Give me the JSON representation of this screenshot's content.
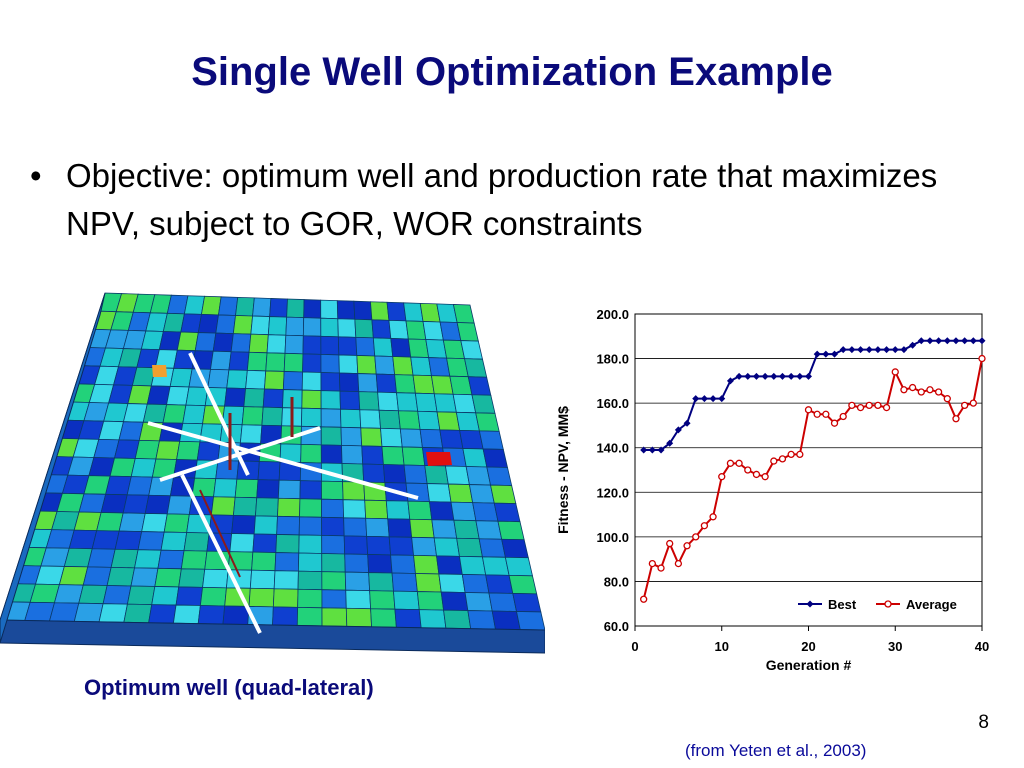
{
  "slide": {
    "title": "Single Well Optimization Example",
    "bullet_symbol": "•",
    "bullet_text": "Objective: optimum well and production rate that maximizes NPV, subject to GOR, WOR constraints",
    "figure_caption": "Optimum well (quad-lateral)",
    "slide_number": "8",
    "citation": "(from Yeten et al., 2003)"
  },
  "colors": {
    "title": "#0a0a7a",
    "best_series": "#000080",
    "average_series": "#cc0000",
    "grid_cell_palette": [
      "#1fc8d0",
      "#2aa0e6",
      "#1a6fe0",
      "#0f3fd0",
      "#22d27a",
      "#5fe040",
      "#17b8a0",
      "#0a2fc0",
      "#3ad8e8"
    ]
  },
  "chart_data": {
    "type": "line",
    "xlabel": "Generation #",
    "ylabel": "Fitness - NPV, MM$",
    "xlim": [
      0,
      40
    ],
    "ylim": [
      60,
      200
    ],
    "xticks": [
      "0",
      "10",
      "20",
      "30",
      "40"
    ],
    "yticks": [
      "60.0",
      "80.0",
      "100.0",
      "120.0",
      "140.0",
      "160.0",
      "180.0",
      "200.0"
    ],
    "grid": "horizontal",
    "legend_position": "bottom-right",
    "series": [
      {
        "name": "Best",
        "color": "#000080",
        "marker": "diamond",
        "x": [
          1,
          2,
          3,
          4,
          5,
          6,
          7,
          8,
          9,
          10,
          11,
          12,
          13,
          14,
          15,
          16,
          17,
          18,
          19,
          20,
          21,
          22,
          23,
          24,
          25,
          26,
          27,
          28,
          29,
          30,
          31,
          32,
          33,
          34,
          35,
          36,
          37,
          38,
          39,
          40
        ],
        "values": [
          139,
          139,
          139,
          142,
          148,
          151,
          162,
          162,
          162,
          162,
          170,
          172,
          172,
          172,
          172,
          172,
          172,
          172,
          172,
          172,
          182,
          182,
          182,
          184,
          184,
          184,
          184,
          184,
          184,
          184,
          184,
          186,
          188,
          188,
          188,
          188,
          188,
          188,
          188,
          188
        ]
      },
      {
        "name": "Average",
        "color": "#cc0000",
        "marker": "circle",
        "x": [
          1,
          2,
          3,
          4,
          5,
          6,
          7,
          8,
          9,
          10,
          11,
          12,
          13,
          14,
          15,
          16,
          17,
          18,
          19,
          20,
          21,
          22,
          23,
          24,
          25,
          26,
          27,
          28,
          29,
          30,
          31,
          32,
          33,
          34,
          35,
          36,
          37,
          38,
          39,
          40
        ],
        "values": [
          72,
          88,
          86,
          97,
          88,
          96,
          100,
          105,
          109,
          127,
          133,
          133,
          130,
          128,
          127,
          134,
          135,
          137,
          137,
          157,
          155,
          155,
          151,
          154,
          159,
          158,
          159,
          159,
          158,
          174,
          166,
          167,
          165,
          166,
          165,
          162,
          153,
          159,
          160,
          180
        ]
      }
    ]
  }
}
